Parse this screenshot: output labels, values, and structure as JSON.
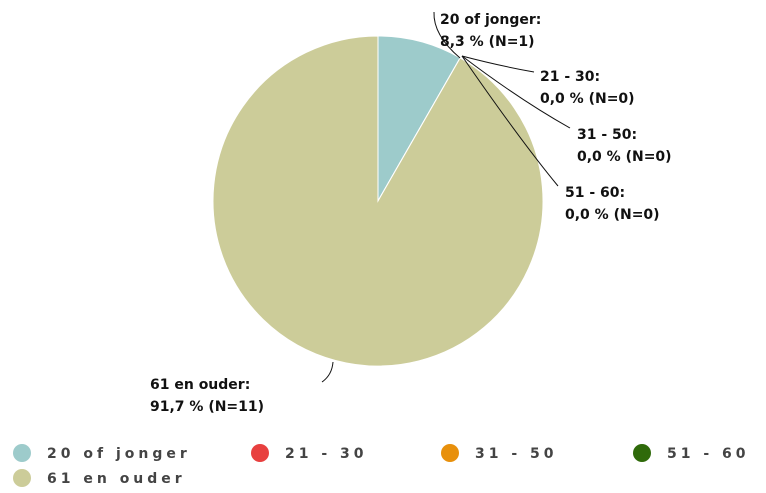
{
  "chart_data": {
    "type": "pie",
    "categories": [
      "20 of jonger",
      "21 - 30",
      "31 - 50",
      "51 - 60",
      "61 en ouder"
    ],
    "values": [
      8.3,
      0,
      0,
      0,
      91.7
    ],
    "label_titles": [
      "20 of jonger:",
      "21 - 30:",
      "31 - 50:",
      "51 - 60:",
      "61 en ouder:"
    ],
    "value_labels": [
      "8,3 % (N=1)",
      "0,0 % (N=0)",
      "0,0 % (N=0)",
      "0,0 % (N=0)",
      "91,7 % (N=11)"
    ],
    "colors": [
      "#9dcbcb",
      "#e8403f",
      "#e8900c",
      "#2f6a0a",
      "#cccc99"
    ],
    "legend": "bottom"
  }
}
